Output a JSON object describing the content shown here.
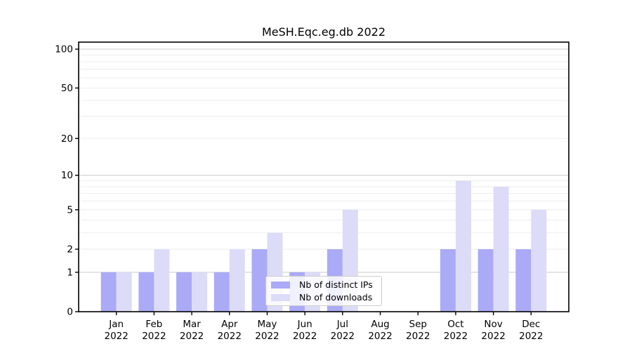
{
  "chart_data": {
    "type": "bar",
    "title": "MeSH.Eqc.eg.db 2022",
    "categories": [
      "Jan",
      "Feb",
      "Mar",
      "Apr",
      "May",
      "Jun",
      "Jul",
      "Aug",
      "Sep",
      "Oct",
      "Nov",
      "Dec"
    ],
    "x_year": "2022",
    "series": [
      {
        "name": "Nb of distinct IPs",
        "color": "#aaaaf7",
        "values": [
          1,
          1,
          1,
          1,
          2,
          1,
          2,
          0,
          0,
          2,
          2,
          2
        ]
      },
      {
        "name": "Nb of downloads",
        "color": "#dcdcf8",
        "values": [
          1,
          2,
          1,
          2,
          3,
          1,
          5,
          0,
          0,
          9,
          8,
          5
        ]
      }
    ],
    "xlabel": "",
    "ylabel": "",
    "yscale": "log1p",
    "ylim": [
      0,
      113
    ],
    "y_ticks": [
      0,
      1,
      2,
      5,
      10,
      20,
      50,
      100
    ],
    "grid": {
      "major": [
        1,
        10,
        100
      ],
      "minor": [
        2,
        3,
        4,
        5,
        6,
        7,
        8,
        9,
        20,
        30,
        40,
        50,
        60,
        70,
        80,
        90
      ]
    },
    "legend_position": "lower-center"
  }
}
